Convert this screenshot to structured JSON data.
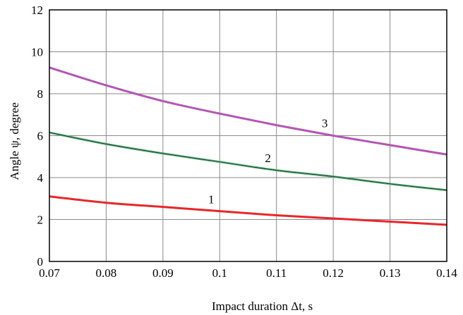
{
  "chart_data": {
    "type": "line",
    "title": "",
    "xlabel": "Impact duration Δt, s",
    "ylabel": "Angle ψ, degree",
    "xlim": [
      0.07,
      0.14
    ],
    "ylim": [
      0,
      12
    ],
    "grid": true,
    "xticks": [
      0.07,
      0.08,
      0.09,
      0.1,
      0.11,
      0.12,
      0.13,
      0.14
    ],
    "xtick_labels": [
      "0.07",
      "0.08",
      "0.09",
      "0.1",
      "0.11",
      "0.12",
      "0.13",
      "0.14"
    ],
    "yticks": [
      0,
      2,
      4,
      6,
      8,
      10,
      12
    ],
    "ytick_labels": [
      "0",
      "2",
      "4",
      "6",
      "8",
      "10",
      "12"
    ],
    "series": [
      {
        "label": "1",
        "color": "#e8262a",
        "x": [
          0.07,
          0.08,
          0.09,
          0.1,
          0.11,
          0.12,
          0.13,
          0.14
        ],
        "y": [
          3.1,
          2.8,
          2.6,
          2.4,
          2.2,
          2.05,
          1.9,
          1.75
        ]
      },
      {
        "label": "2",
        "color": "#5cb85c",
        "x": [
          0.07,
          0.08,
          0.09,
          0.1,
          0.11,
          0.12,
          0.13,
          0.14
        ],
        "y": [
          6.15,
          5.6,
          5.15,
          4.75,
          4.35,
          4.05,
          3.7,
          3.4
        ]
      },
      {
        "label": "3",
        "color": "#b455b4",
        "x": [
          0.07,
          0.08,
          0.09,
          0.1,
          0.11,
          0.12,
          0.13,
          0.14
        ],
        "y": [
          9.25,
          8.4,
          7.65,
          7.05,
          6.5,
          6.0,
          5.55,
          5.1
        ]
      }
    ]
  }
}
